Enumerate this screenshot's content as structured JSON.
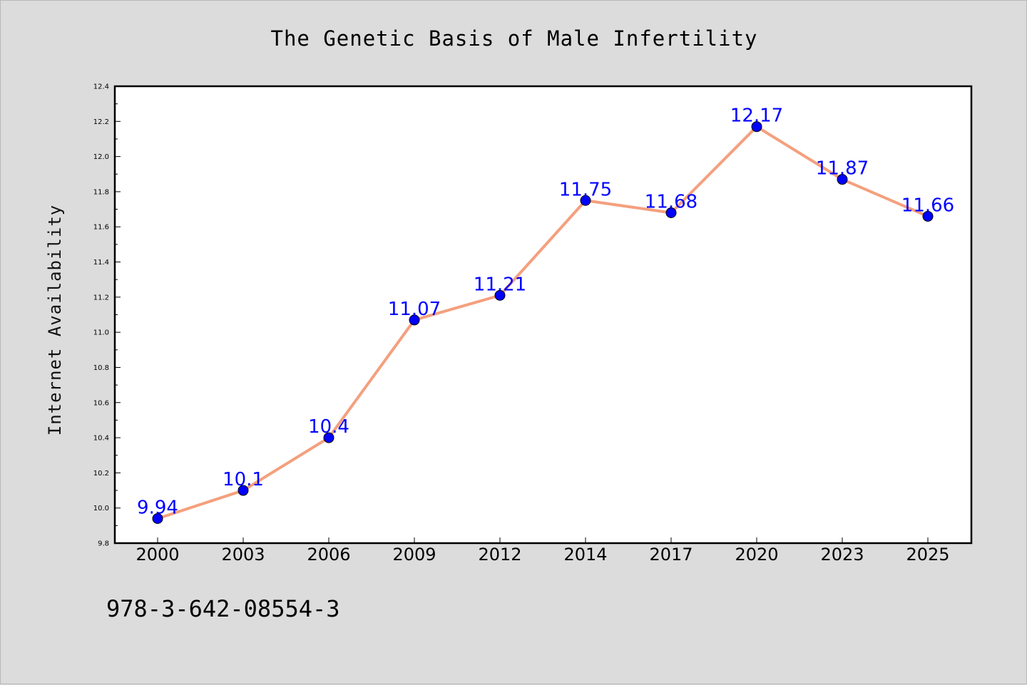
{
  "chart_data": {
    "type": "line",
    "title": "The Genetic Basis of Male Infertility",
    "xlabel": "",
    "ylabel": "Internet Availability",
    "categories": [
      "2000",
      "2003",
      "2006",
      "2009",
      "2012",
      "2014",
      "2017",
      "2020",
      "2023",
      "2025"
    ],
    "series": [
      {
        "values": [
          9.94,
          10.1,
          10.4,
          11.07,
          11.21,
          11.75,
          11.68,
          12.17,
          11.87,
          11.66
        ],
        "data_labels": [
          "9.94",
          "10.1",
          "10.4",
          "11.07",
          "11.21",
          "11.75",
          "11.68",
          "12.17",
          "11.87",
          "11.66"
        ],
        "line_color": "#f4a07e",
        "marker_color": "#0000ff"
      }
    ],
    "ylim": [
      9.8,
      12.4
    ],
    "yticks": [
      "9.8",
      "10.0",
      "10.2",
      "10.4",
      "10.6",
      "10.8",
      "11.0",
      "11.2",
      "11.4",
      "11.6",
      "11.8",
      "12.0",
      "12.2",
      "12.4"
    ],
    "grid": false,
    "legend": "none"
  },
  "footer": {
    "isbn": "978-3-642-08554-3"
  },
  "colors": {
    "background": "#dcdcdc",
    "plot_area": "#ffffff",
    "line": "#f4a07e",
    "marker": "#0000ff",
    "data_label": "#0000ff"
  }
}
